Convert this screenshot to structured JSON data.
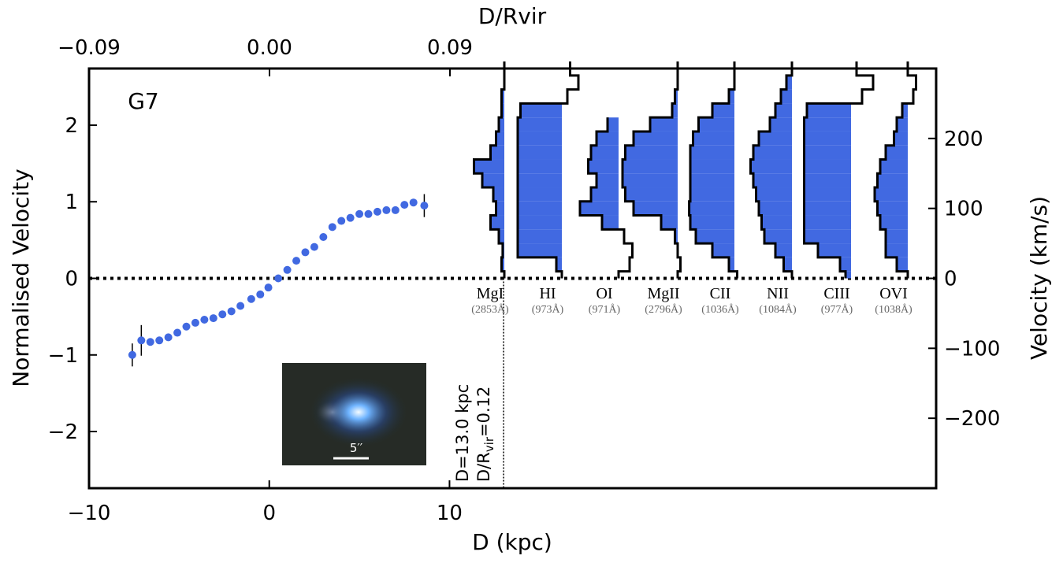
{
  "chart_data": {
    "type": "scatter",
    "panel_label": "G7",
    "x_label": "D (kpc)",
    "x2_label": "D/Rvir",
    "y_label": "Normalised Velocity",
    "y2_label": "Velocity (km/s)",
    "xlim": [
      -10,
      37
    ],
    "xticks": [
      {
        "value": -10,
        "label": "−10"
      },
      0,
      10
    ],
    "x2lim": [
      -0.09,
      0.3325
    ],
    "x2ticks": [
      {
        "value": -0.09,
        "label": "−0.09"
      },
      {
        "value": 0,
        "label": "0.00"
      },
      {
        "value": 0.09,
        "label": "0.09"
      }
    ],
    "ylim": [
      -2.74,
      2.74
    ],
    "yticks": [
      {
        "value": -2,
        "label": "−2"
      },
      {
        "value": -1,
        "label": "−1"
      },
      0,
      1,
      2
    ],
    "y2lim": [
      -300,
      300
    ],
    "y2ticks": [
      {
        "value": -200,
        "label": "−200"
      },
      {
        "value": -100,
        "label": "−100"
      },
      0,
      100,
      200
    ],
    "color": "#4169e1",
    "x": [
      -7.6,
      -7.1,
      -6.6,
      -6.1,
      -5.6,
      -5.1,
      -4.6,
      -4.1,
      -3.6,
      -3.1,
      -2.6,
      -2.1,
      -1.6,
      -1.0,
      -0.5,
      -0.05,
      0.5,
      1.0,
      1.5,
      2.0,
      2.5,
      3.0,
      3.5,
      4.0,
      4.5,
      5.0,
      5.5,
      6.0,
      6.5,
      7.0,
      7.5,
      8.0,
      8.6
    ],
    "values": [
      -1.0,
      -0.81,
      -0.83,
      -0.81,
      -0.77,
      -0.71,
      -0.63,
      -0.58,
      -0.54,
      -0.52,
      -0.47,
      -0.43,
      -0.36,
      -0.27,
      -0.21,
      -0.12,
      0.0,
      0.11,
      0.23,
      0.34,
      0.41,
      0.54,
      0.67,
      0.75,
      0.79,
      0.84,
      0.84,
      0.87,
      0.89,
      0.89,
      0.96,
      0.99,
      0.95
    ],
    "errors": [
      0.15,
      0.2,
      0.03,
      0.03,
      0.03,
      0.03,
      0.03,
      0.03,
      0.03,
      0.03,
      0.03,
      0.03,
      0.03,
      0.03,
      0.03,
      0.03,
      0.03,
      0.03,
      0.03,
      0.03,
      0.03,
      0.03,
      0.03,
      0.03,
      0.03,
      0.03,
      0.03,
      0.03,
      0.03,
      0.03,
      0.03,
      0.03,
      0.15
    ],
    "hline": 0,
    "vline": {
      "x": 13.0,
      "label": "D=13.0 kpc",
      "label2": [
        "D/R",
        "vir",
        "=0.12"
      ]
    },
    "inset_scale_label": "5′′",
    "spectrum_velocity": [
      0,
      20,
      40,
      60,
      80,
      100,
      120,
      140,
      160,
      180,
      200,
      220,
      240,
      260,
      280,
      300
    ],
    "spectra": [
      {
        "name": "MgI",
        "wavelength": "(2853Å)",
        "flux": [
          1.0,
          0.95,
          0.97,
          0.9,
          0.75,
          0.85,
          0.8,
          0.6,
          0.45,
          0.75,
          0.85,
          0.9,
          0.95,
          0.95,
          1.0,
          1.0
        ]
      },
      {
        "name": "HI",
        "wavelength": "(973Å)",
        "flux": [
          1.0,
          0.9,
          0.2,
          0.2,
          0.2,
          0.2,
          0.2,
          0.2,
          0.2,
          0.2,
          0.2,
          0.2,
          0.25,
          1.1,
          1.3,
          1.15
        ]
      },
      {
        "name": "OI",
        "wavelength": "(971Å)",
        "flux": [
          1.0,
          1.2,
          1.25,
          1.1,
          0.7,
          0.3,
          0.5,
          0.6,
          0.45,
          0.5,
          0.6,
          0.8,
          null,
          null,
          null,
          null
        ]
      },
      {
        "name": "MgII",
        "wavelength": "(2796Å)",
        "flux": [
          1.0,
          1.05,
          1.0,
          0.95,
          0.7,
          0.2,
          0.05,
          0.0,
          0.0,
          0.05,
          0.2,
          0.5,
          0.9,
          0.95,
          1.0,
          1.0
        ]
      },
      {
        "name": "CII",
        "wavelength": "(1036Å)",
        "flux": [
          1.05,
          0.9,
          0.6,
          0.3,
          0.2,
          0.18,
          0.2,
          0.2,
          0.2,
          0.2,
          0.25,
          0.35,
          0.6,
          0.9,
          1.0,
          1.0
        ]
      },
      {
        "name": "NII",
        "wavelength": "(1084Å)",
        "flux": [
          1.0,
          0.85,
          0.7,
          0.5,
          0.45,
          0.4,
          0.35,
          0.3,
          0.25,
          0.3,
          0.4,
          0.6,
          0.7,
          0.8,
          0.9,
          1.0
        ]
      },
      {
        "name": "CIII",
        "wavelength": "(977Å)",
        "flux": [
          0.9,
          0.8,
          0.4,
          0.15,
          0.15,
          0.15,
          0.15,
          0.15,
          0.15,
          0.15,
          0.15,
          0.15,
          0.2,
          1.2,
          1.4,
          1.1
        ]
      },
      {
        "name": "OVI",
        "wavelength": "(1038Å)",
        "flux": [
          1.0,
          0.8,
          0.6,
          0.6,
          0.5,
          0.45,
          0.4,
          0.45,
          0.5,
          0.6,
          0.75,
          0.8,
          0.9,
          1.1,
          1.15,
          1.0
        ]
      }
    ]
  }
}
